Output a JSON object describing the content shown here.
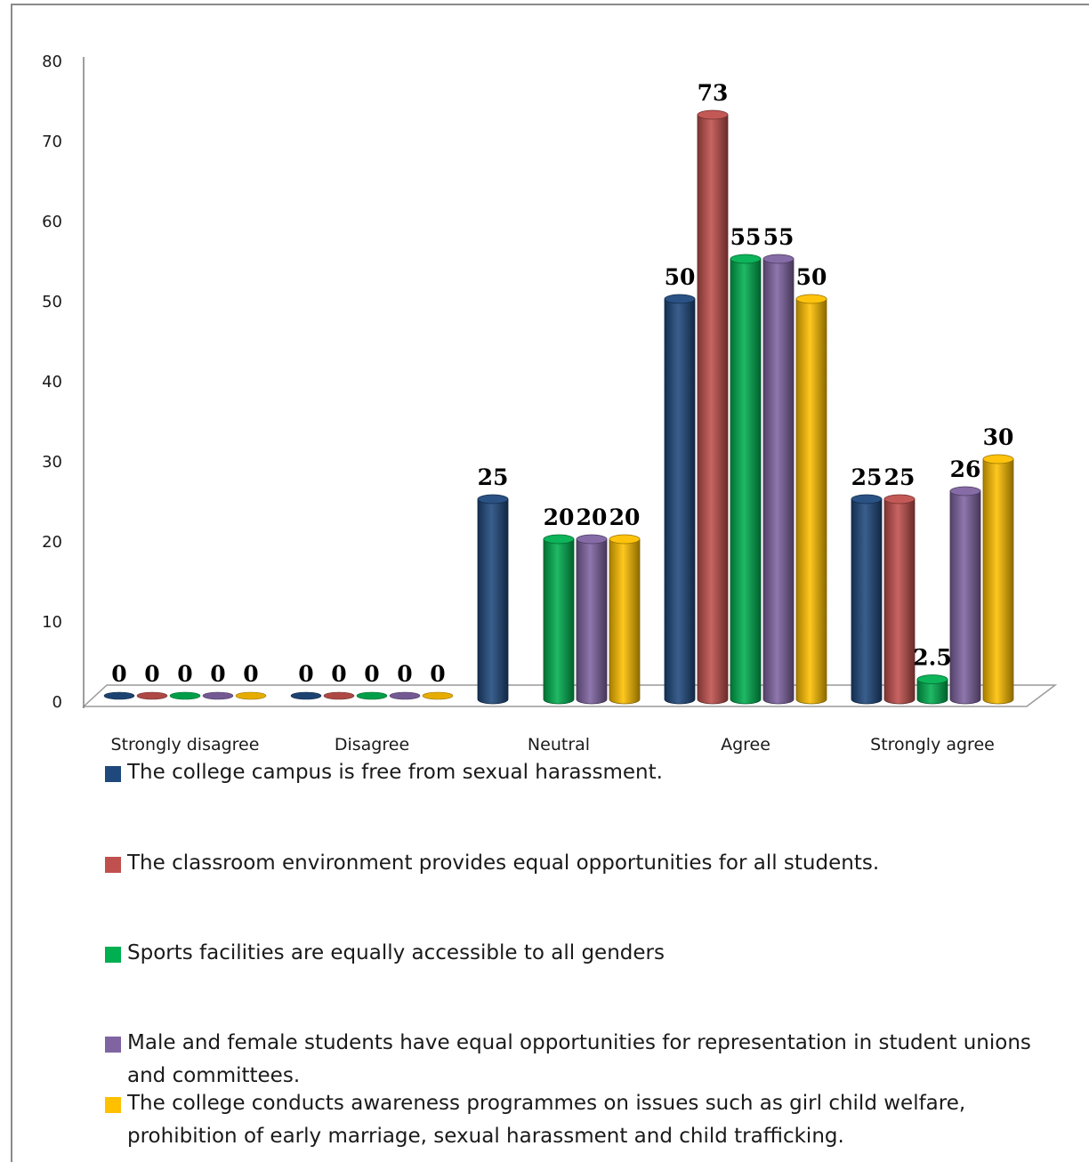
{
  "chart_data": {
    "type": "bar",
    "categories": [
      "Strongly disagree",
      "Disagree",
      "Neutral",
      "Agree",
      "Strongly agree"
    ],
    "series": [
      {
        "name": "The college campus is free from sexual harassment.",
        "color": "#1f497d",
        "values": [
          0,
          0,
          25,
          50,
          25
        ]
      },
      {
        "name": "The classroom environment provides equal opportunities for all students.",
        "color": "#c0504d",
        "values": [
          0,
          0,
          null,
          73,
          25
        ]
      },
      {
        "name": "Sports facilities are equally accessible to all genders",
        "color": "#00b050",
        "values": [
          0,
          0,
          20,
          55,
          2.5
        ]
      },
      {
        "name": "Male and female students have equal opportunities for representation in student unions and committees.",
        "color": "#8064a2",
        "values": [
          0,
          0,
          20,
          55,
          26
        ]
      },
      {
        "name": "The college conducts awareness programmes on issues such as girl child welfare, prohibition of early marriage, sexual harassment and child trafficking.",
        "color": "#ffc000",
        "values": [
          0,
          0,
          20,
          50,
          30
        ]
      }
    ],
    "data_labels": [
      [
        "0",
        "0",
        "25",
        "50",
        "25"
      ],
      [
        "0",
        "0",
        "",
        "73",
        "25"
      ],
      [
        "0",
        "0",
        "20",
        "55",
        "2.5"
      ],
      [
        "0",
        "0",
        "20",
        "55",
        "26"
      ],
      [
        "0",
        "0",
        "20",
        "50",
        "30"
      ]
    ],
    "yticks": [
      "0",
      "10",
      "20",
      "30",
      "40",
      "50",
      "60",
      "70",
      "80"
    ],
    "ylim": [
      0,
      80
    ],
    "grid": false,
    "style": "3d-cylinder",
    "legend_position": "bottom"
  }
}
